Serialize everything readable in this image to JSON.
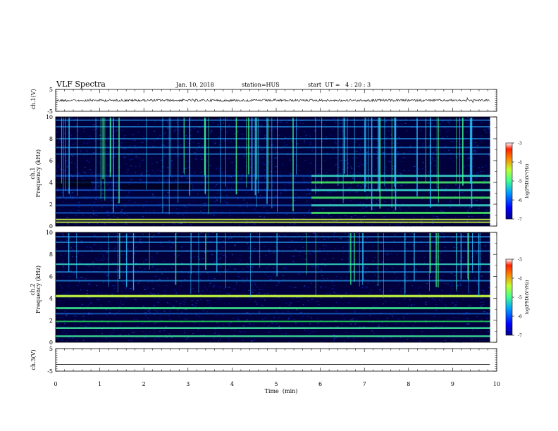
{
  "header": {
    "title": "VLF Spectra",
    "date": "Jan. 10, 2018",
    "station": "station=HUS",
    "start": "start  UT =   4 : 20 : 3"
  },
  "chart_data": [
    {
      "type": "line",
      "panel": "ch1-waveform",
      "ylabel": "ch.1(V)",
      "ylim": [
        -5,
        5
      ],
      "yticks": [
        "5",
        "-5"
      ],
      "xlim": [
        0,
        10
      ],
      "series": [
        {
          "values_approx_level": 0
        }
      ]
    },
    {
      "type": "heatmap",
      "panel": "ch1-spectrogram",
      "ylabel": "ch.1\nFrequency  (kHz)",
      "ylim": [
        0,
        10
      ],
      "yticks": [
        "0",
        "2",
        "4",
        "6",
        "8",
        "10"
      ],
      "xlim": [
        0,
        10
      ],
      "colorbar": {
        "label": "log(PSD)(V²/Hz)",
        "ticks": [
          "-3",
          "-4",
          "-5",
          "-6",
          "-7"
        ],
        "range": [
          -7,
          -3
        ]
      }
    },
    {
      "type": "heatmap",
      "panel": "ch2-spectrogram",
      "ylabel": "ch.2\nFrequency  (kHz)",
      "ylim": [
        0,
        10
      ],
      "yticks": [
        "0",
        "2",
        "4",
        "6",
        "8",
        "10"
      ],
      "xlim": [
        0,
        10
      ],
      "colorbar": {
        "label": "log(PSD)(V²/Hz)",
        "ticks": [
          "-3",
          "-4",
          "-5",
          "-6",
          "-7"
        ],
        "range": [
          -7,
          -3
        ]
      }
    },
    {
      "type": "line",
      "panel": "ch3-waveform",
      "ylabel": "ch.3(V)",
      "ylim": [
        -5,
        5
      ],
      "yticks": [
        "5",
        "-5"
      ],
      "xlim": [
        0,
        10
      ],
      "series": [
        {
          "values_approx_level": -2
        }
      ]
    }
  ],
  "xaxis": {
    "label": "Time  (min)",
    "ticks": [
      "0",
      "1",
      "2",
      "3",
      "4",
      "5",
      "6",
      "7",
      "8",
      "9",
      "10"
    ]
  },
  "colors": {
    "background": "#00003c",
    "band": "#1a7cff",
    "strong_band": "#4cff4c",
    "line": "#000000"
  }
}
